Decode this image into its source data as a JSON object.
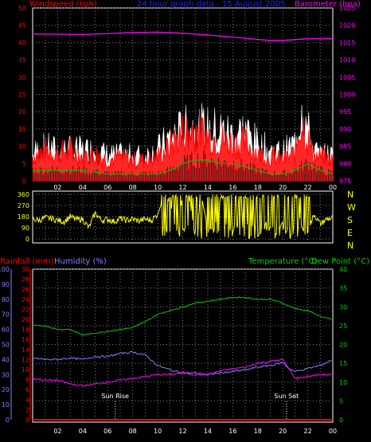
{
  "colors": {
    "wind": "#ff0000",
    "gust": "#ffffff",
    "avg_wind": "#00c000",
    "barometer": "#ff00ff",
    "title": "#2020ff",
    "direction": "#ffff00",
    "rainfall": "#ff0000",
    "humidity": "#8080ff",
    "temperature": "#00cc00",
    "dewpoint": "#ff00ff",
    "grid": "#808080",
    "sun": "#ffffff"
  },
  "chart_data": [
    {
      "type": "area",
      "title": "24 hour graph data - 15 August 2005",
      "left_axis_label": "Windspeed (kph)",
      "right_axis_label": "Barometer (hpa)",
      "x_hours": [
        2,
        4,
        6,
        8,
        10,
        12,
        14,
        16,
        18,
        20,
        22,
        24
      ],
      "x_tick_labels": [
        "02",
        "04",
        "06",
        "08",
        "10",
        "12",
        "14",
        "16",
        "18",
        "20",
        "22",
        "00"
      ],
      "left_ticks": [
        "0",
        "5",
        "10",
        "15",
        "20",
        "25",
        "30",
        "35",
        "40",
        "45",
        "50"
      ],
      "left_range": [
        0,
        50
      ],
      "right_ticks": [
        "975",
        "980",
        "985",
        "990",
        "995",
        "1000",
        "1005",
        "1010",
        "1015",
        "1020",
        "1025"
      ],
      "right_range": [
        975,
        1025
      ],
      "series": [
        {
          "name": "Barometer",
          "axis": "right",
          "x": [
            0,
            2,
            4,
            6,
            8,
            10,
            12,
            14,
            16,
            18,
            19,
            20,
            22,
            24
          ],
          "y": [
            1017.5,
            1017.4,
            1017.3,
            1017.6,
            1017.9,
            1018.0,
            1017.7,
            1017.2,
            1016.6,
            1015.9,
            1015.6,
            1015.6,
            1016.1,
            1016.1
          ]
        },
        {
          "name": "Wind speed",
          "axis": "left",
          "x": [
            0,
            1,
            2,
            3,
            4,
            5,
            6,
            7,
            8,
            9,
            10,
            11,
            12,
            13,
            14,
            15,
            16,
            17,
            18,
            19,
            20,
            21,
            21.5,
            22,
            22.5,
            23,
            24
          ],
          "y": [
            7,
            9,
            8,
            9,
            7,
            8,
            6,
            7,
            6,
            6,
            7,
            10,
            14,
            15,
            13,
            12,
            11,
            11,
            8,
            7,
            6,
            8,
            18,
            12,
            7,
            7,
            6
          ]
        },
        {
          "name": "Wind gust",
          "axis": "left",
          "x": [
            0,
            1,
            2,
            3,
            4,
            5,
            6,
            7,
            8,
            9,
            10,
            11,
            12,
            13,
            14,
            15,
            16,
            17,
            18,
            19,
            20,
            21,
            21.5,
            22,
            22.5,
            23,
            24
          ],
          "y": [
            11,
            13,
            12,
            12,
            12,
            12,
            10,
            10,
            10,
            10,
            12,
            17,
            20,
            21,
            20,
            20,
            18,
            20,
            14,
            12,
            11,
            15,
            31,
            20,
            12,
            10,
            10
          ]
        },
        {
          "name": "Average wind",
          "axis": "left",
          "x": [
            0,
            2,
            4,
            6,
            8,
            10,
            11,
            12,
            13,
            14,
            15,
            16,
            17,
            18,
            19,
            20,
            21,
            22,
            23,
            24
          ],
          "y": [
            3,
            3,
            3,
            2,
            2,
            2,
            3,
            5,
            6,
            6,
            5,
            5,
            4,
            3,
            2,
            2,
            3,
            5,
            3,
            2
          ]
        }
      ]
    },
    {
      "type": "scatter",
      "compass_labels": [
        "N",
        "W",
        "S",
        "E",
        "N"
      ],
      "y_ticks": [
        "360",
        "270",
        "180",
        "90",
        "0"
      ],
      "y_range": [
        0,
        360
      ],
      "series": [
        {
          "name": "Wind direction",
          "x": [
            0,
            0.5,
            1,
            1.5,
            2,
            2.5,
            3,
            3.5,
            4,
            4.5,
            5,
            5.5,
            6,
            6.5,
            7,
            7.5,
            8,
            8.5,
            9,
            9.5,
            10,
            10.5,
            11,
            11.5,
            12,
            12.5,
            13,
            13.5,
            14,
            14.5,
            15,
            15.5,
            16,
            16.5,
            17,
            17.5,
            18,
            18.5,
            19,
            19.5,
            20,
            20.5,
            21,
            21.5,
            22,
            22.5,
            23,
            23.5,
            24
          ],
          "y": [
            160,
            150,
            170,
            165,
            150,
            140,
            180,
            155,
            160,
            90,
            210,
            150,
            160,
            140,
            165,
            150,
            160,
            145,
            160,
            150,
            200,
            340,
            300,
            20,
            350,
            330,
            10,
            340,
            90,
            60,
            320,
            340,
            30,
            310,
            80,
            330,
            20,
            60,
            300,
            40,
            140,
            30,
            330,
            100,
            50,
            200,
            120,
            160,
            170
          ]
        }
      ]
    },
    {
      "type": "line",
      "rainfall_label": "Rainfall (mm)",
      "humidity_label": "Humidity (%)",
      "temperature_label": "Temperature (°C)",
      "dewpoint_label": "Dew Point (°C)",
      "humidity_ticks": [
        "0",
        "10",
        "20",
        "30",
        "40",
        "50",
        "60",
        "70",
        "80",
        "90",
        "100"
      ],
      "humidity_range": [
        0,
        100
      ],
      "rain_ticks": [
        "0",
        "2",
        "4",
        "6",
        "8",
        "10",
        "12",
        "14",
        "16",
        "18",
        "20",
        "22",
        "24",
        "26",
        "28",
        "30"
      ],
      "rain_range": [
        0,
        30
      ],
      "temp_ticks": [
        "0",
        "5",
        "10",
        "15",
        "20",
        "25",
        "30",
        "35",
        "40"
      ],
      "temp_range": [
        0,
        40
      ],
      "x_tick_labels": [
        "02",
        "04",
        "06",
        "08",
        "10",
        "12",
        "14",
        "16",
        "18",
        "20",
        "22",
        "00"
      ],
      "sun_rise_label": "Sun Rise",
      "sun_set_label": "Sun Set",
      "sun_rise_hour": 6.6,
      "sun_set_hour": 20.3,
      "series": [
        {
          "name": "Temperature",
          "x": [
            0,
            1,
            2,
            3,
            4,
            5,
            6,
            7,
            8,
            9,
            10,
            11,
            12,
            13,
            14,
            15,
            16,
            17,
            18,
            19,
            20,
            21,
            22,
            23,
            24
          ],
          "y": [
            25.0,
            25.0,
            24.0,
            24.0,
            22.5,
            23.0,
            23.5,
            24.0,
            24.5,
            26.0,
            28.0,
            29.0,
            30.0,
            31.0,
            31.5,
            32.0,
            32.5,
            32.5,
            32.0,
            32.0,
            31.0,
            29.5,
            29.0,
            27.5,
            26.5
          ]
        },
        {
          "name": "Humidity",
          "x": [
            0,
            1,
            2,
            3,
            4,
            5,
            6,
            7,
            8,
            9,
            10,
            11,
            12,
            13,
            14,
            15,
            16,
            17,
            18,
            19,
            20,
            20.5,
            21,
            22,
            23,
            24
          ],
          "y": [
            41,
            40,
            40,
            41,
            40,
            42,
            42,
            44,
            45,
            43,
            36,
            33,
            31,
            31,
            30,
            31,
            32,
            33,
            35,
            36,
            38,
            34,
            32,
            34,
            36,
            40
          ]
        },
        {
          "name": "Dew Point",
          "x": [
            0,
            1,
            2,
            3,
            4,
            5,
            6,
            7,
            8,
            9,
            10,
            11,
            12,
            13,
            14,
            15,
            16,
            17,
            18,
            19,
            20,
            21,
            22,
            23,
            24
          ],
          "y": [
            11.0,
            10.5,
            10.5,
            9.5,
            9.0,
            9.5,
            10.0,
            10.5,
            11.0,
            11.5,
            12.0,
            12.0,
            12.5,
            12.0,
            12.0,
            13.0,
            13.5,
            14.0,
            15.0,
            15.5,
            16.0,
            11.0,
            11.5,
            12.0,
            12.0
          ]
        },
        {
          "name": "Rainfall",
          "x": [
            0,
            24
          ],
          "y": [
            0,
            0
          ]
        }
      ]
    }
  ]
}
